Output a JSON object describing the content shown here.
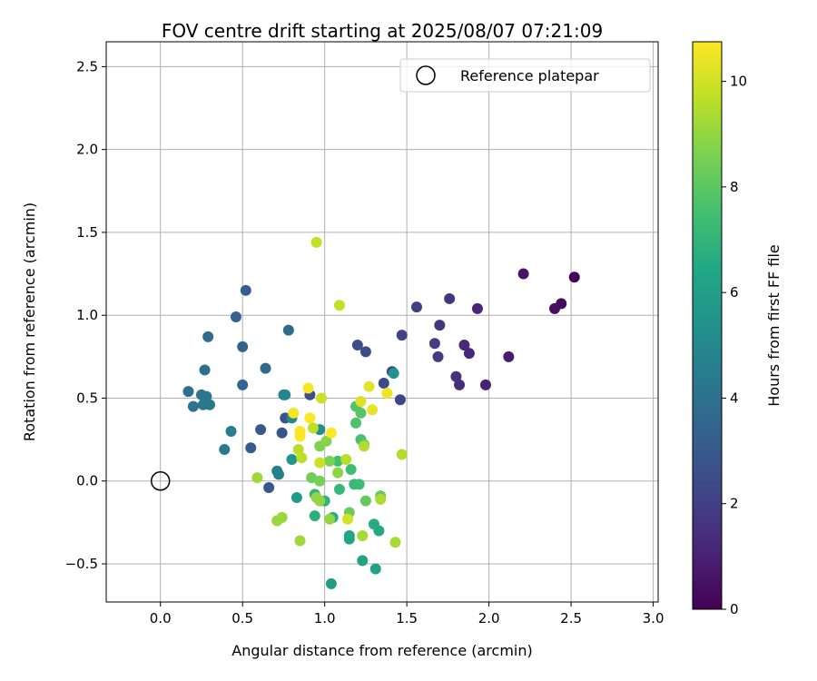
{
  "chart_data": {
    "type": "scatter",
    "title": "FOV centre drift starting at 2025/08/07 07:21:09",
    "xlabel": "Angular distance from reference (arcmin)",
    "ylabel": "Rotation from reference (arcmin)",
    "xlim": [
      -0.33,
      3.03
    ],
    "ylim": [
      -0.73,
      2.65
    ],
    "xticks": [
      0.0,
      0.5,
      1.0,
      1.5,
      2.0,
      2.5,
      3.0
    ],
    "xtick_labels": [
      "0.0",
      "0.5",
      "1.0",
      "1.5",
      "2.0",
      "2.5",
      "3.0"
    ],
    "yticks": [
      -0.5,
      0.0,
      0.5,
      1.0,
      1.5,
      2.0,
      2.5
    ],
    "ytick_labels": [
      "−0.5",
      "0.0",
      "0.5",
      "1.0",
      "1.5",
      "2.0",
      "2.5"
    ],
    "grid": true,
    "legend": {
      "location": "top-right",
      "entries": [
        "Reference platepar"
      ]
    },
    "reference_point": {
      "x": 0.0,
      "y": 0.0,
      "label": "Reference platepar"
    },
    "colorbar": {
      "label": "Hours from first FF file",
      "colormap": "viridis",
      "range": [
        0,
        10.75
      ],
      "ticks": [
        0,
        2,
        4,
        6,
        8,
        10
      ],
      "tick_labels": [
        "0",
        "2",
        "4",
        "6",
        "8",
        "10"
      ]
    },
    "points": [
      {
        "x": 2.52,
        "y": 1.23,
        "c": 0.1
      },
      {
        "x": 2.44,
        "y": 1.07,
        "c": 0.3
      },
      {
        "x": 2.4,
        "y": 1.04,
        "c": 0.4
      },
      {
        "x": 2.21,
        "y": 1.25,
        "c": 0.6
      },
      {
        "x": 2.12,
        "y": 0.75,
        "c": 0.8
      },
      {
        "x": 1.98,
        "y": 0.58,
        "c": 1.0
      },
      {
        "x": 1.93,
        "y": 1.04,
        "c": 1.1
      },
      {
        "x": 1.88,
        "y": 0.77,
        "c": 1.2
      },
      {
        "x": 1.85,
        "y": 0.82,
        "c": 1.3
      },
      {
        "x": 1.82,
        "y": 0.58,
        "c": 1.4
      },
      {
        "x": 1.8,
        "y": 0.63,
        "c": 1.5
      },
      {
        "x": 1.76,
        "y": 1.1,
        "c": 1.6
      },
      {
        "x": 1.7,
        "y": 0.94,
        "c": 1.7
      },
      {
        "x": 1.69,
        "y": 0.75,
        "c": 1.8
      },
      {
        "x": 1.67,
        "y": 0.83,
        "c": 1.9
      },
      {
        "x": 1.56,
        "y": 1.05,
        "c": 2.0
      },
      {
        "x": 1.47,
        "y": 0.88,
        "c": 2.1
      },
      {
        "x": 1.46,
        "y": 0.49,
        "c": 2.2
      },
      {
        "x": 1.41,
        "y": 0.66,
        "c": 2.3
      },
      {
        "x": 1.36,
        "y": 0.59,
        "c": 2.4
      },
      {
        "x": 1.25,
        "y": 0.78,
        "c": 2.5
      },
      {
        "x": 1.2,
        "y": 0.82,
        "c": 2.6
      },
      {
        "x": 0.91,
        "y": 0.52,
        "c": 2.6
      },
      {
        "x": 0.76,
        "y": 0.38,
        "c": 2.7
      },
      {
        "x": 0.74,
        "y": 0.29,
        "c": 2.8
      },
      {
        "x": 0.66,
        "y": -0.04,
        "c": 2.9
      },
      {
        "x": 0.61,
        "y": 0.31,
        "c": 3.0
      },
      {
        "x": 0.55,
        "y": 0.2,
        "c": 3.1
      },
      {
        "x": 0.52,
        "y": 1.15,
        "c": 3.2
      },
      {
        "x": 0.46,
        "y": 0.99,
        "c": 3.3
      },
      {
        "x": 0.5,
        "y": 0.81,
        "c": 3.4
      },
      {
        "x": 0.5,
        "y": 0.58,
        "c": 3.5
      },
      {
        "x": 0.64,
        "y": 0.68,
        "c": 3.6
      },
      {
        "x": 0.78,
        "y": 0.91,
        "c": 3.7
      },
      {
        "x": 0.29,
        "y": 0.87,
        "c": 3.8
      },
      {
        "x": 0.27,
        "y": 0.67,
        "c": 3.9
      },
      {
        "x": 0.17,
        "y": 0.54,
        "c": 4.0
      },
      {
        "x": 0.2,
        "y": 0.45,
        "c": 4.1
      },
      {
        "x": 0.25,
        "y": 0.52,
        "c": 4.2
      },
      {
        "x": 0.28,
        "y": 0.51,
        "c": 4.2
      },
      {
        "x": 0.26,
        "y": 0.46,
        "c": 4.3
      },
      {
        "x": 0.3,
        "y": 0.46,
        "c": 4.3
      },
      {
        "x": 0.39,
        "y": 0.19,
        "c": 4.4
      },
      {
        "x": 0.43,
        "y": 0.3,
        "c": 4.5
      },
      {
        "x": 0.71,
        "y": 0.06,
        "c": 4.6
      },
      {
        "x": 0.72,
        "y": 0.04,
        "c": 4.7
      },
      {
        "x": 0.75,
        "y": 0.52,
        "c": 4.8
      },
      {
        "x": 0.76,
        "y": 0.52,
        "c": 4.9
      },
      {
        "x": 0.8,
        "y": 0.38,
        "c": 5.0
      },
      {
        "x": 0.97,
        "y": 0.31,
        "c": 5.2
      },
      {
        "x": 1.42,
        "y": 0.65,
        "c": 5.4
      },
      {
        "x": 0.8,
        "y": 0.13,
        "c": 5.6
      },
      {
        "x": 0.83,
        "y": -0.1,
        "c": 5.8
      },
      {
        "x": 1.04,
        "y": -0.62,
        "c": 6.0
      },
      {
        "x": 1.31,
        "y": -0.53,
        "c": 6.1
      },
      {
        "x": 1.23,
        "y": -0.48,
        "c": 6.2
      },
      {
        "x": 1.15,
        "y": -0.33,
        "c": 6.3
      },
      {
        "x": 1.15,
        "y": -0.35,
        "c": 6.4
      },
      {
        "x": 1.33,
        "y": -0.3,
        "c": 6.5
      },
      {
        "x": 1.3,
        "y": -0.26,
        "c": 6.6
      },
      {
        "x": 1.05,
        "y": -0.22,
        "c": 6.7
      },
      {
        "x": 0.94,
        "y": -0.21,
        "c": 6.8
      },
      {
        "x": 1.0,
        "y": -0.12,
        "c": 6.9
      },
      {
        "x": 0.94,
        "y": -0.08,
        "c": 7.0
      },
      {
        "x": 1.09,
        "y": -0.05,
        "c": 7.1
      },
      {
        "x": 1.18,
        "y": -0.02,
        "c": 7.2
      },
      {
        "x": 1.21,
        "y": -0.02,
        "c": 7.3
      },
      {
        "x": 1.16,
        "y": 0.07,
        "c": 7.4
      },
      {
        "x": 1.08,
        "y": 0.12,
        "c": 7.5
      },
      {
        "x": 1.22,
        "y": 0.25,
        "c": 7.6
      },
      {
        "x": 1.19,
        "y": 0.35,
        "c": 7.7
      },
      {
        "x": 1.19,
        "y": 0.45,
        "c": 7.8
      },
      {
        "x": 1.22,
        "y": 0.41,
        "c": 7.9
      },
      {
        "x": 1.24,
        "y": 0.22,
        "c": 8.0
      },
      {
        "x": 1.25,
        "y": -0.12,
        "c": 8.1
      },
      {
        "x": 1.34,
        "y": -0.09,
        "c": 8.2
      },
      {
        "x": 1.15,
        "y": -0.19,
        "c": 8.3
      },
      {
        "x": 0.92,
        "y": 0.02,
        "c": 8.4
      },
      {
        "x": 0.97,
        "y": 0.0,
        "c": 8.5
      },
      {
        "x": 1.03,
        "y": 0.12,
        "c": 8.6
      },
      {
        "x": 0.97,
        "y": 0.21,
        "c": 8.7
      },
      {
        "x": 1.01,
        "y": 0.24,
        "c": 8.8
      },
      {
        "x": 1.08,
        "y": 0.05,
        "c": 8.9
      },
      {
        "x": 0.95,
        "y": -0.1,
        "c": 9.0
      },
      {
        "x": 0.97,
        "y": -0.12,
        "c": 9.0
      },
      {
        "x": 1.03,
        "y": -0.23,
        "c": 9.0
      },
      {
        "x": 0.74,
        "y": -0.22,
        "c": 9.1
      },
      {
        "x": 0.71,
        "y": -0.24,
        "c": 9.1
      },
      {
        "x": 0.59,
        "y": 0.02,
        "c": 9.2
      },
      {
        "x": 0.85,
        "y": -0.36,
        "c": 9.2
      },
      {
        "x": 1.43,
        "y": -0.37,
        "c": 9.3
      },
      {
        "x": 1.23,
        "y": -0.33,
        "c": 9.3
      },
      {
        "x": 1.34,
        "y": -0.11,
        "c": 9.4
      },
      {
        "x": 1.47,
        "y": 0.16,
        "c": 9.5
      },
      {
        "x": 1.24,
        "y": 0.21,
        "c": 9.5
      },
      {
        "x": 1.13,
        "y": 0.13,
        "c": 9.6
      },
      {
        "x": 0.84,
        "y": 0.19,
        "c": 9.6
      },
      {
        "x": 0.86,
        "y": 0.14,
        "c": 9.7
      },
      {
        "x": 0.93,
        "y": 0.32,
        "c": 9.7
      },
      {
        "x": 0.95,
        "y": 1.44,
        "c": 9.8
      },
      {
        "x": 1.09,
        "y": 1.06,
        "c": 9.8
      },
      {
        "x": 0.98,
        "y": 0.5,
        "c": 9.9
      },
      {
        "x": 0.97,
        "y": 0.11,
        "c": 9.9
      },
      {
        "x": 1.14,
        "y": -0.23,
        "c": 10.0
      },
      {
        "x": 1.22,
        "y": 0.48,
        "c": 10.2
      },
      {
        "x": 1.27,
        "y": 0.57,
        "c": 10.3
      },
      {
        "x": 1.29,
        "y": 0.43,
        "c": 10.4
      },
      {
        "x": 1.38,
        "y": 0.53,
        "c": 10.5
      },
      {
        "x": 0.9,
        "y": 0.56,
        "c": 10.6
      },
      {
        "x": 0.81,
        "y": 0.41,
        "c": 10.6
      },
      {
        "x": 0.91,
        "y": 0.38,
        "c": 10.7
      },
      {
        "x": 0.85,
        "y": 0.3,
        "c": 10.7
      },
      {
        "x": 0.85,
        "y": 0.27,
        "c": 10.7
      },
      {
        "x": 1.04,
        "y": 0.29,
        "c": 10.7
      }
    ]
  }
}
